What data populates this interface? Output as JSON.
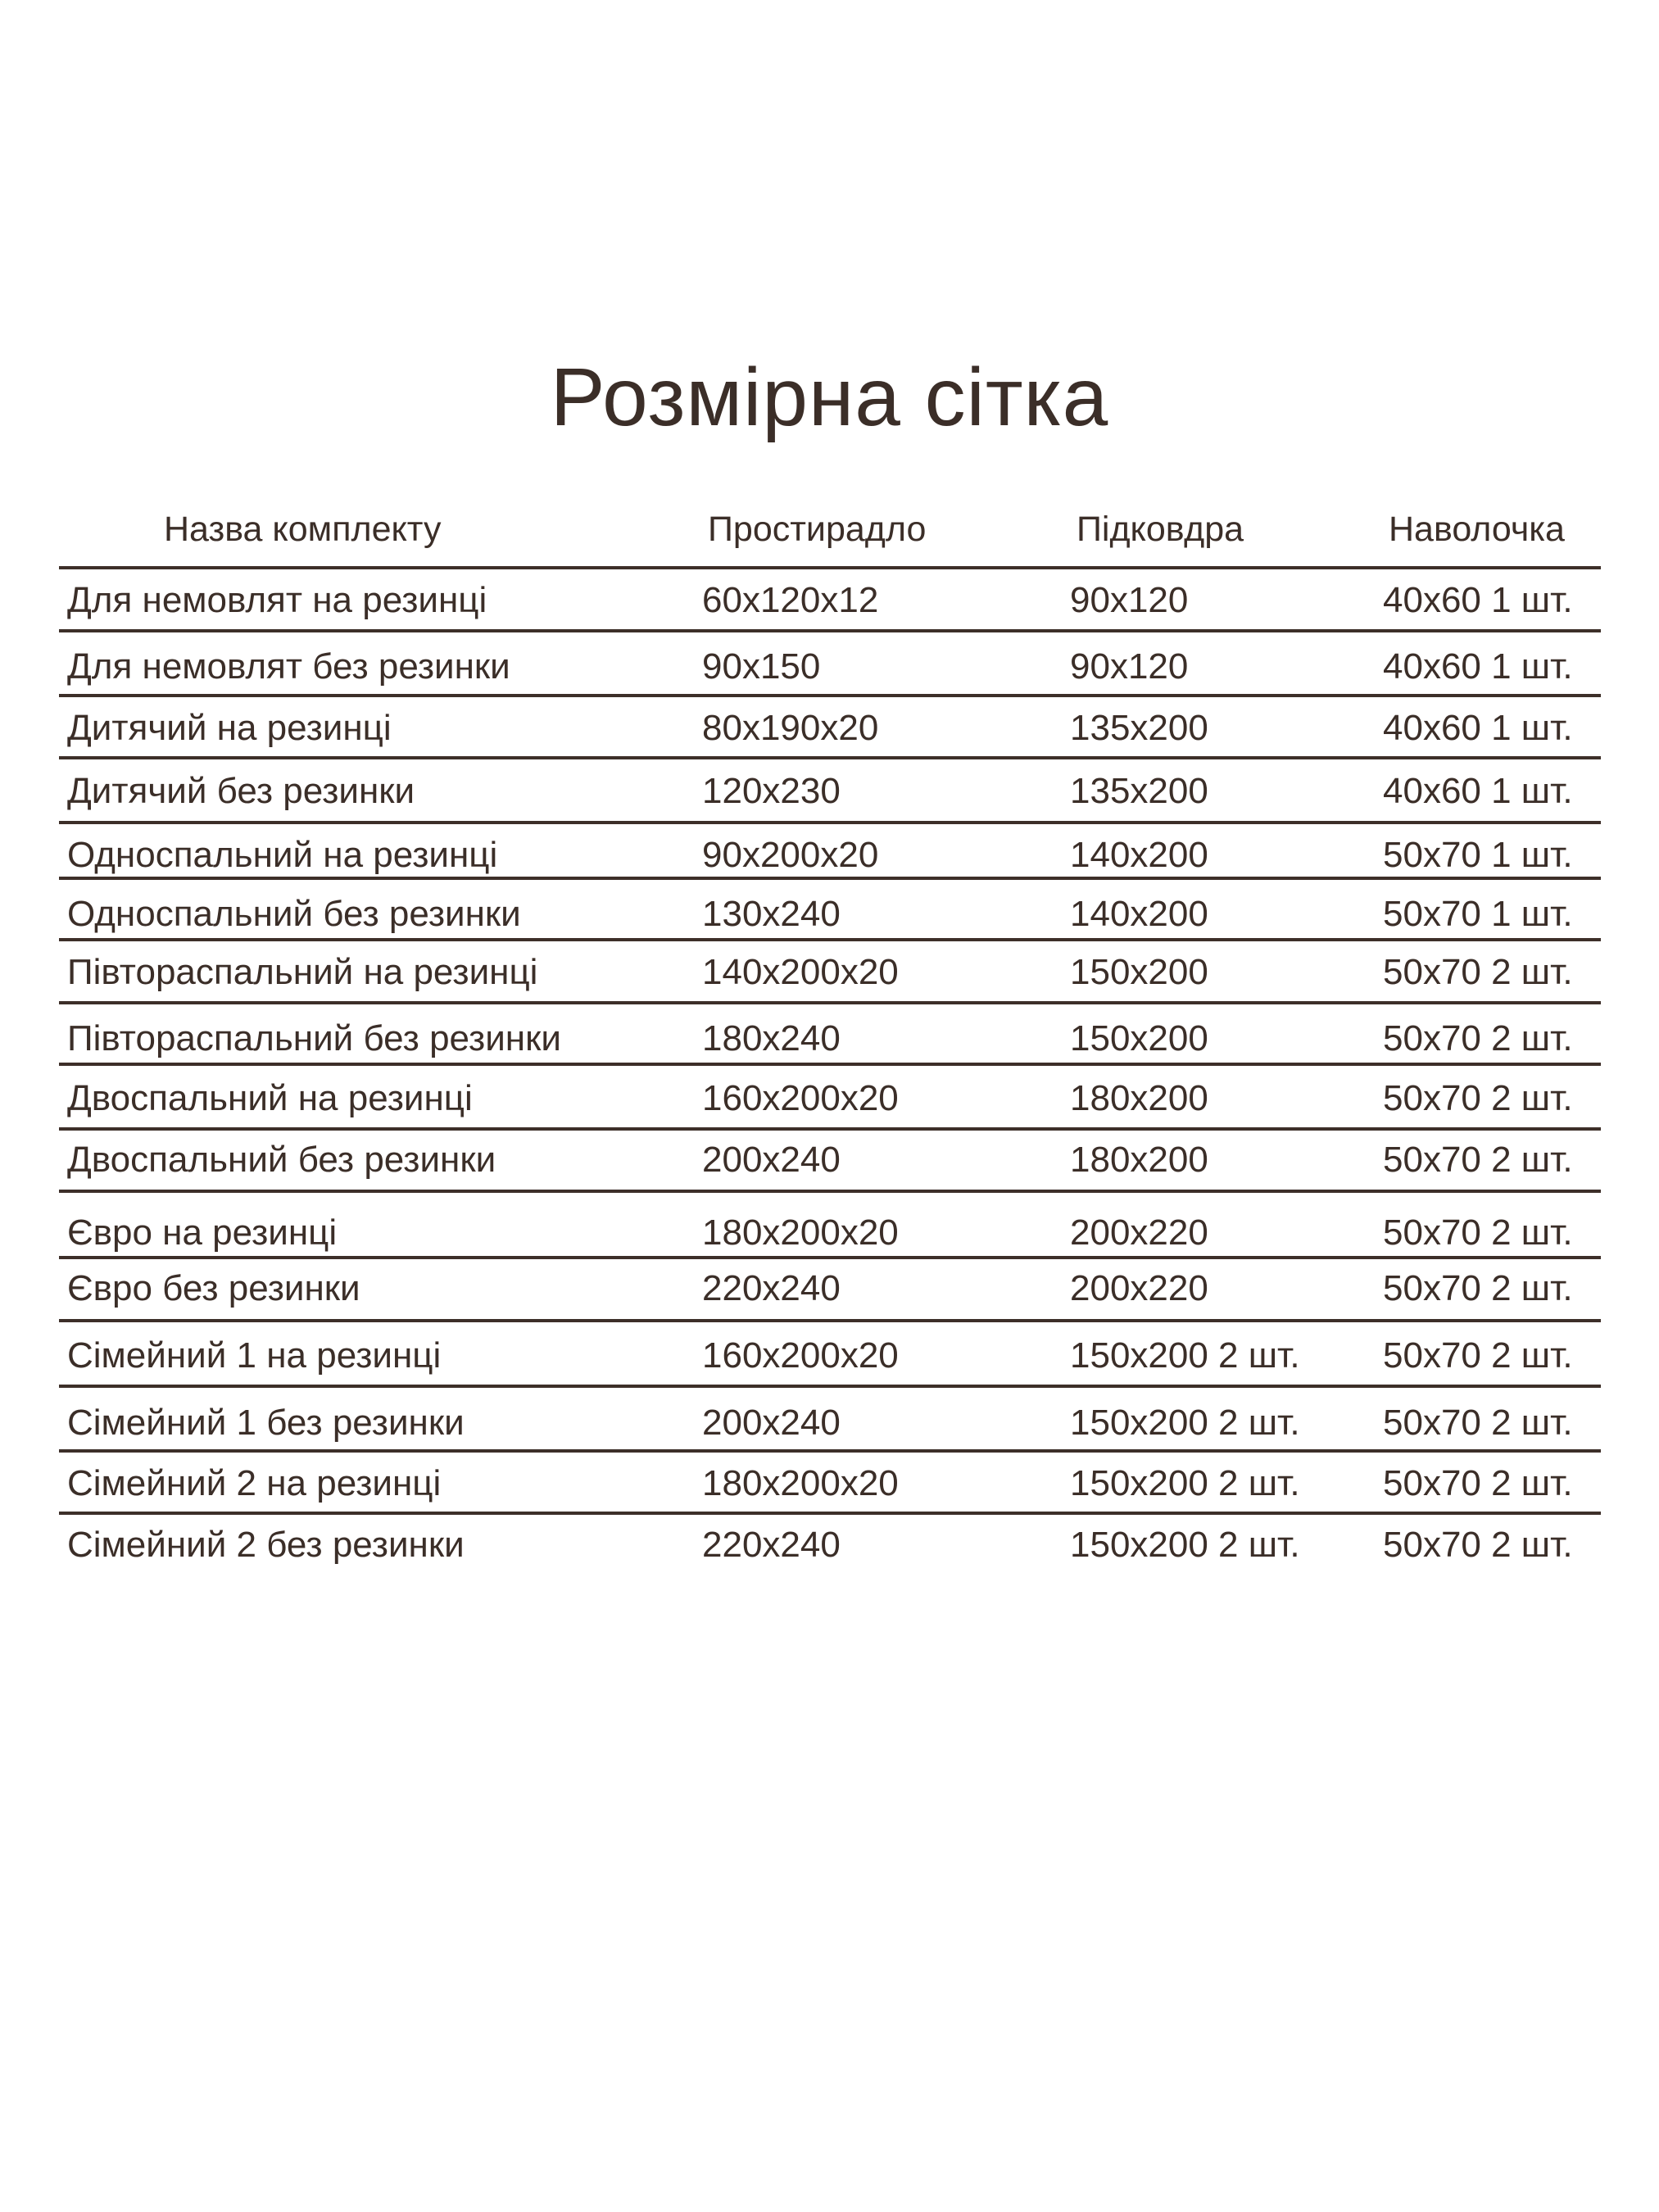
{
  "title": "Розмірна сітка",
  "table": {
    "headers": [
      "Назва комплекту",
      "Простирадло",
      "Підковдра",
      "Наволочка"
    ],
    "rows": [
      [
        "Для немовлят на резинці",
        "60x120x12",
        "90x120",
        "40x60 1 шт."
      ],
      [
        "Для немовлят без резинки",
        "90x150",
        "90x120",
        "40x60 1 шт."
      ],
      [
        "Дитячий на резинці",
        "80x190x20",
        "135x200",
        "40x60 1 шт."
      ],
      [
        "Дитячий без резинки",
        "120x230",
        "135x200",
        "40x60 1 шт."
      ],
      [
        "Односпальний на резинці",
        "90x200x20",
        "140x200",
        "50x70 1 шт."
      ],
      [
        "Односпальний без резинки",
        "130x240",
        "140x200",
        "50x70 1 шт."
      ],
      [
        "Півтораспальний на резинці",
        "140x200x20",
        "150x200",
        "50x70 2 шт."
      ],
      [
        "Півтораспальний без резинки",
        "180x240",
        "150x200",
        "50x70 2 шт."
      ],
      [
        "Двоспальний на резинці",
        "160x200x20",
        "180x200",
        "50x70 2 шт."
      ],
      [
        "Двоспальний без резинки",
        "200x240",
        "180x200",
        "50x70 2 шт."
      ],
      [
        "Євро на резинці",
        "180x200x20",
        "200x220",
        "50x70 2 шт."
      ],
      [
        "Євро без резинки",
        "220x240",
        "200x220",
        "50x70 2 шт."
      ],
      [
        "Сімейний 1 на резинці",
        "160x200x20",
        "150x200 2 шт.",
        "50x70 2 шт."
      ],
      [
        "Сімейний 1 без резинки",
        "200x240",
        "150x200 2 шт.",
        "50x70 2 шт."
      ],
      [
        "Сімейний 2 на резинці",
        "180x200x20",
        "150x200 2 шт.",
        "50x70 2 шт."
      ],
      [
        "Сімейний 2 без резинки",
        "220x240",
        "150x200 2 шт.",
        "50x70 2 шт."
      ]
    ]
  },
  "colors": {
    "text": "#3b2e28",
    "rule": "#3d2f29",
    "background": "#ffffff"
  }
}
